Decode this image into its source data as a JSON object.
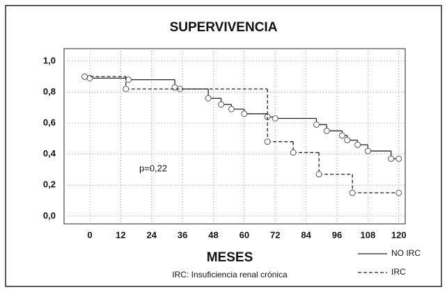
{
  "chart_data": {
    "type": "step",
    "title": "SUPERVIVENCIA",
    "x_label": "MESES",
    "footnote": "IRC: Insuficiencia renal crónica",
    "annotation": "p=0,22",
    "xlim": [
      -10,
      122.5
    ],
    "ylim": [
      -0.05,
      1.08
    ],
    "xticks": [
      0,
      12,
      24,
      36,
      48,
      60,
      72,
      84,
      96,
      108,
      120
    ],
    "yticks": [
      {
        "value": 0,
        "label": "0,0"
      },
      {
        "value": 0.2,
        "label": "0,2"
      },
      {
        "value": 0.4,
        "label": "0,4"
      },
      {
        "value": 0.6,
        "label": "0,6"
      },
      {
        "value": 0.8,
        "label": "0,8"
      },
      {
        "value": 1,
        "label": "1,0"
      }
    ],
    "grid": true,
    "legend": "bottom-right",
    "series": [
      {
        "name": "NO IRC",
        "color": "#222",
        "dash": false,
        "x": [
          -2,
          0,
          15,
          33,
          35,
          46,
          51,
          55,
          60,
          69,
          72,
          88,
          92,
          98,
          100,
          104,
          108,
          117,
          120
        ],
        "values": [
          0.9,
          0.89,
          0.88,
          0.83,
          0.82,
          0.76,
          0.72,
          0.69,
          0.66,
          0.64,
          0.63,
          0.59,
          0.55,
          0.52,
          0.49,
          0.46,
          0.42,
          0.37,
          0.37
        ]
      },
      {
        "name": "IRC",
        "color": "#222",
        "dash": true,
        "x": [
          -2,
          14,
          69,
          79,
          89,
          102,
          120
        ],
        "values": [
          0.9,
          0.82,
          0.48,
          0.41,
          0.27,
          0.15,
          0.15
        ]
      }
    ]
  }
}
